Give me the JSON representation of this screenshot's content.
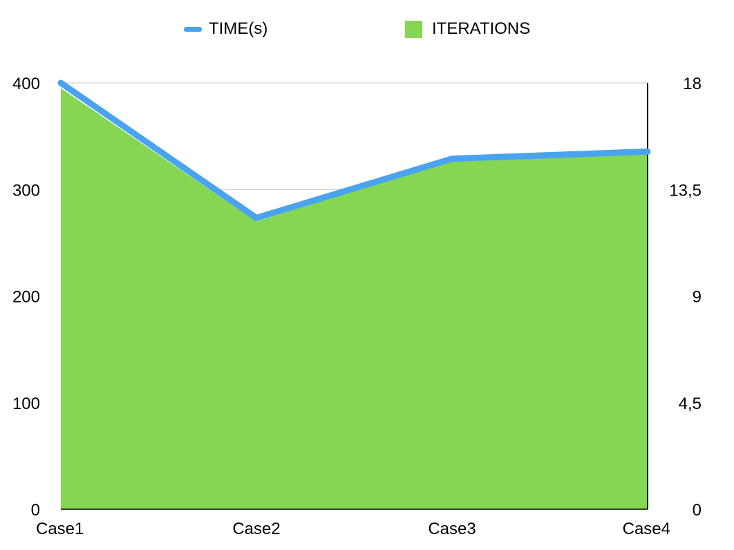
{
  "chart_data": {
    "type": "line+area",
    "categories": [
      "Case1",
      "Case2",
      "Case3",
      "Case4"
    ],
    "series": [
      {
        "name": "TIME(s)",
        "type": "line",
        "axis": "right",
        "values": [
          18,
          12.3,
          14.8,
          15.1
        ],
        "color": "#4aa3ef"
      },
      {
        "name": "ITERATIONS",
        "type": "area",
        "axis": "left",
        "values": [
          395,
          270,
          328,
          335
        ],
        "color": "#84d653"
      }
    ],
    "left_axis": {
      "min": 0,
      "max": 400,
      "ticks": [
        "0",
        "100",
        "200",
        "300",
        "400"
      ]
    },
    "right_axis": {
      "min": 0,
      "max": 18,
      "ticks": [
        "0",
        "4,5",
        "9",
        "13,5",
        "18"
      ]
    },
    "grid": true,
    "legend_position": "top"
  }
}
